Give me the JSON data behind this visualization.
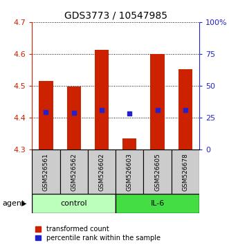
{
  "title": "GDS3773 / 10547985",
  "samples": [
    "GSM526561",
    "GSM526562",
    "GSM526602",
    "GSM526603",
    "GSM526605",
    "GSM526678"
  ],
  "groups": [
    "control",
    "control",
    "control",
    "IL-6",
    "IL-6",
    "IL-6"
  ],
  "transformed_counts": [
    4.515,
    4.497,
    4.612,
    4.335,
    4.6,
    4.551
  ],
  "percentile_ranks": [
    4.418,
    4.416,
    4.424,
    4.413,
    4.424,
    4.424
  ],
  "y_min": 4.3,
  "y_max": 4.7,
  "y_ticks": [
    4.3,
    4.4,
    4.5,
    4.6,
    4.7
  ],
  "right_y_ticks": [
    0,
    25,
    50,
    75,
    100
  ],
  "right_y_labels": [
    "0",
    "25",
    "50",
    "75",
    "100%"
  ],
  "bar_color": "#cc2200",
  "dot_color": "#2222cc",
  "control_color": "#bbffbb",
  "il6_color": "#44dd44",
  "bar_width": 0.5,
  "agent_label": "agent",
  "legend_items": [
    "transformed count",
    "percentile rank within the sample"
  ]
}
